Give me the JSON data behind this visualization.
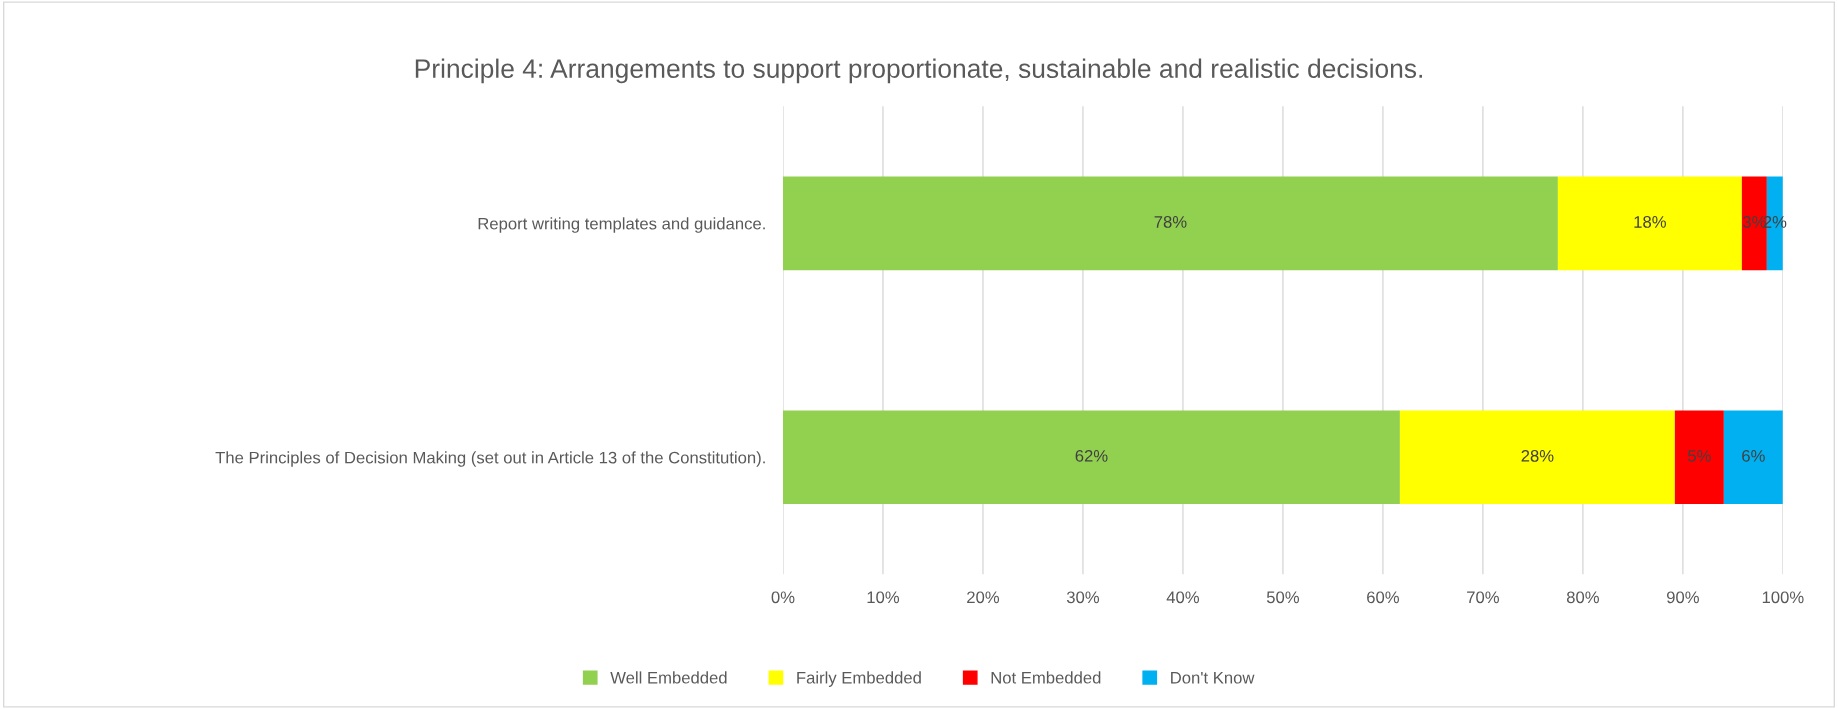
{
  "chart_data": {
    "type": "bar",
    "orientation": "horizontal",
    "stacked": true,
    "title": "Principle 4: Arrangements to support proportionate, sustainable and realistic decisions.",
    "categories": [
      "Report writing templates and guidance.",
      "The Principles of Decision Making (set out in Article 13 of the Constitution)."
    ],
    "series": [
      {
        "name": "Well Embedded",
        "color": "#92d050",
        "values": [
          77.5,
          61.7
        ],
        "value_labels": [
          "78%",
          "62%"
        ]
      },
      {
        "name": "Fairly Embedded",
        "color": "#ffff00",
        "values": [
          18.4,
          27.5
        ],
        "value_labels": [
          "18%",
          "28%"
        ]
      },
      {
        "name": "Not Embedded",
        "color": "#ff0000",
        "values": [
          2.5,
          4.9
        ],
        "value_labels": [
          "3%",
          "5%"
        ]
      },
      {
        "name": "Don't Know",
        "color": "#00b0f0",
        "values": [
          1.6,
          5.9
        ],
        "value_labels": [
          "2%",
          "6%"
        ]
      }
    ],
    "xlim": [
      0,
      100
    ],
    "xticks": [
      {
        "value": 0,
        "label": "0%"
      },
      {
        "value": 10,
        "label": "10%"
      },
      {
        "value": 20,
        "label": "20%"
      },
      {
        "value": 30,
        "label": "30%"
      },
      {
        "value": 40,
        "label": "40%"
      },
      {
        "value": 50,
        "label": "50%"
      },
      {
        "value": 60,
        "label": "60%"
      },
      {
        "value": 70,
        "label": "70%"
      },
      {
        "value": 80,
        "label": "80%"
      },
      {
        "value": 90,
        "label": "90%"
      },
      {
        "value": 100,
        "label": "100%"
      }
    ],
    "grid": "x",
    "legend": "bottom"
  }
}
